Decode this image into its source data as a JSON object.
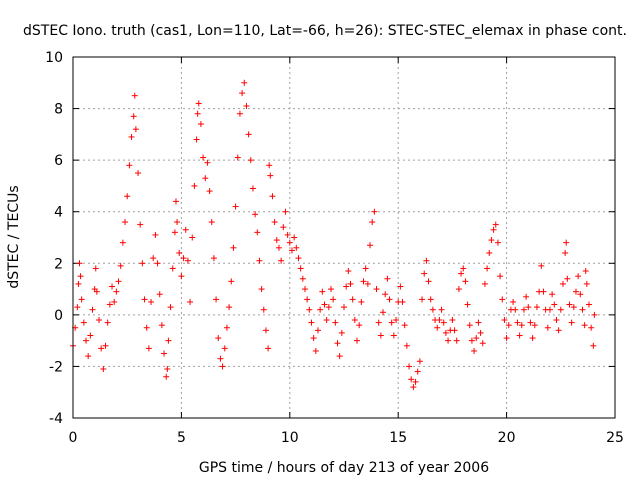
{
  "chart_data": {
    "type": "scatter",
    "title": "dSTEC Iono. truth (cas1, Lon=110, Lat=-66, h=26): STEC-STEC_elemax in phase cont.",
    "xlabel": "GPS time / hours of day 213 of year 2006",
    "ylabel": "dSTEC  / TECUs",
    "xlim": [
      0,
      25
    ],
    "ylim": [
      -4,
      10
    ],
    "xticks": [
      0,
      5,
      10,
      15,
      20,
      25
    ],
    "yticks": [
      -4,
      -2,
      0,
      2,
      4,
      6,
      8,
      10
    ],
    "grid": true,
    "marker": "+",
    "colors": {
      "series": "#ff0000",
      "grid": "#a0a0a0",
      "axis": "#000000"
    },
    "series": [
      {
        "name": "",
        "points": [
          [
            0.0,
            -1.2
          ],
          [
            0.1,
            -0.5
          ],
          [
            0.2,
            0.3
          ],
          [
            0.25,
            1.2
          ],
          [
            0.3,
            2.0
          ],
          [
            0.35,
            1.5
          ],
          [
            0.4,
            0.6
          ],
          [
            0.5,
            -0.3
          ],
          [
            0.6,
            -1.0
          ],
          [
            0.7,
            -1.6
          ],
          [
            0.8,
            -0.8
          ],
          [
            0.9,
            0.2
          ],
          [
            1.0,
            1.0
          ],
          [
            1.05,
            1.8
          ],
          [
            1.1,
            0.9
          ],
          [
            1.2,
            -0.2
          ],
          [
            1.3,
            -1.3
          ],
          [
            1.4,
            -2.1
          ],
          [
            1.5,
            -1.2
          ],
          [
            1.6,
            -0.3
          ],
          [
            1.7,
            0.4
          ],
          [
            1.8,
            1.1
          ],
          [
            1.9,
            0.5
          ],
          [
            2.0,
            0.9
          ],
          [
            2.1,
            1.3
          ],
          [
            2.2,
            1.9
          ],
          [
            2.3,
            2.8
          ],
          [
            2.4,
            3.6
          ],
          [
            2.5,
            4.6
          ],
          [
            2.6,
            5.8
          ],
          [
            2.7,
            6.9
          ],
          [
            2.8,
            7.7
          ],
          [
            2.85,
            8.5
          ],
          [
            2.9,
            7.2
          ],
          [
            3.0,
            5.5
          ],
          [
            3.1,
            3.5
          ],
          [
            3.2,
            2.0
          ],
          [
            3.3,
            0.6
          ],
          [
            3.4,
            -0.5
          ],
          [
            3.5,
            -1.3
          ],
          [
            3.6,
            0.5
          ],
          [
            3.7,
            2.2
          ],
          [
            3.8,
            3.1
          ],
          [
            3.9,
            2.0
          ],
          [
            4.0,
            0.8
          ],
          [
            4.1,
            -0.4
          ],
          [
            4.2,
            -1.5
          ],
          [
            4.3,
            -2.4
          ],
          [
            4.35,
            -2.1
          ],
          [
            4.4,
            -1.0
          ],
          [
            4.5,
            0.3
          ],
          [
            4.6,
            1.8
          ],
          [
            4.7,
            3.2
          ],
          [
            4.75,
            4.4
          ],
          [
            4.8,
            3.6
          ],
          [
            4.9,
            2.4
          ],
          [
            5.0,
            1.5
          ],
          [
            5.1,
            2.2
          ],
          [
            5.2,
            3.3
          ],
          [
            5.3,
            2.1
          ],
          [
            5.4,
            0.5
          ],
          [
            5.5,
            3.0
          ],
          [
            5.6,
            5.0
          ],
          [
            5.7,
            6.8
          ],
          [
            5.75,
            7.8
          ],
          [
            5.8,
            8.2
          ],
          [
            5.9,
            7.4
          ],
          [
            6.0,
            6.1
          ],
          [
            6.1,
            5.3
          ],
          [
            6.2,
            5.9
          ],
          [
            6.3,
            4.8
          ],
          [
            6.4,
            3.6
          ],
          [
            6.5,
            2.2
          ],
          [
            6.6,
            0.6
          ],
          [
            6.7,
            -0.9
          ],
          [
            6.8,
            -1.7
          ],
          [
            6.9,
            -2.0
          ],
          [
            7.0,
            -1.3
          ],
          [
            7.1,
            -0.5
          ],
          [
            7.2,
            0.3
          ],
          [
            7.3,
            1.3
          ],
          [
            7.4,
            2.6
          ],
          [
            7.5,
            4.2
          ],
          [
            7.6,
            6.1
          ],
          [
            7.7,
            7.8
          ],
          [
            7.8,
            8.6
          ],
          [
            7.9,
            9.0
          ],
          [
            8.0,
            8.1
          ],
          [
            8.1,
            7.0
          ],
          [
            8.2,
            6.0
          ],
          [
            8.3,
            4.9
          ],
          [
            8.4,
            3.9
          ],
          [
            8.5,
            3.2
          ],
          [
            8.6,
            2.1
          ],
          [
            8.7,
            1.0
          ],
          [
            8.8,
            0.2
          ],
          [
            8.9,
            -0.6
          ],
          [
            9.0,
            -1.3
          ],
          [
            9.05,
            5.8
          ],
          [
            9.1,
            5.4
          ],
          [
            9.2,
            4.6
          ],
          [
            9.3,
            3.6
          ],
          [
            9.4,
            2.9
          ],
          [
            9.5,
            2.6
          ],
          [
            9.6,
            2.1
          ],
          [
            9.7,
            3.4
          ],
          [
            9.8,
            4.0
          ],
          [
            9.9,
            3.1
          ],
          [
            10.0,
            2.8
          ],
          [
            10.1,
            2.5
          ],
          [
            10.2,
            3.0
          ],
          [
            10.3,
            2.6
          ],
          [
            10.4,
            2.2
          ],
          [
            10.5,
            1.8
          ],
          [
            10.6,
            1.4
          ],
          [
            10.7,
            1.0
          ],
          [
            10.8,
            0.6
          ],
          [
            10.9,
            0.2
          ],
          [
            11.0,
            -0.3
          ],
          [
            11.1,
            -0.9
          ],
          [
            11.2,
            -1.4
          ],
          [
            11.3,
            -0.6
          ],
          [
            11.4,
            0.2
          ],
          [
            11.5,
            0.9
          ],
          [
            11.6,
            0.4
          ],
          [
            11.7,
            -0.2
          ],
          [
            11.8,
            0.3
          ],
          [
            11.9,
            1.0
          ],
          [
            12.0,
            0.6
          ],
          [
            12.1,
            -0.3
          ],
          [
            12.2,
            -1.1
          ],
          [
            12.3,
            -1.6
          ],
          [
            12.4,
            -0.7
          ],
          [
            12.5,
            0.3
          ],
          [
            12.6,
            1.1
          ],
          [
            12.7,
            1.7
          ],
          [
            12.8,
            1.2
          ],
          [
            12.9,
            0.6
          ],
          [
            13.0,
            -0.2
          ],
          [
            13.1,
            -1.0
          ],
          [
            13.2,
            -0.4
          ],
          [
            13.3,
            0.5
          ],
          [
            13.4,
            1.3
          ],
          [
            13.5,
            1.8
          ],
          [
            13.6,
            1.2
          ],
          [
            13.7,
            2.7
          ],
          [
            13.8,
            3.6
          ],
          [
            13.9,
            4.0
          ],
          [
            14.0,
            1.0
          ],
          [
            14.1,
            -0.3
          ],
          [
            14.2,
            -0.8
          ],
          [
            14.3,
            0.1
          ],
          [
            14.4,
            0.8
          ],
          [
            14.5,
            1.4
          ],
          [
            14.6,
            0.6
          ],
          [
            14.7,
            -0.3
          ],
          [
            14.8,
            -0.8
          ],
          [
            14.9,
            -0.2
          ],
          [
            15.0,
            0.5
          ],
          [
            15.1,
            1.1
          ],
          [
            15.2,
            0.5
          ],
          [
            15.3,
            -0.4
          ],
          [
            15.4,
            -1.2
          ],
          [
            15.5,
            -2.0
          ],
          [
            15.6,
            -2.5
          ],
          [
            15.7,
            -2.8
          ],
          [
            15.8,
            -2.6
          ],
          [
            15.9,
            -2.2
          ],
          [
            16.0,
            -1.8
          ],
          [
            16.1,
            0.6
          ],
          [
            16.2,
            1.6
          ],
          [
            16.3,
            2.1
          ],
          [
            16.4,
            1.3
          ],
          [
            16.5,
            0.6
          ],
          [
            16.6,
            0.2
          ],
          [
            16.7,
            -0.2
          ],
          [
            16.8,
            -0.5
          ],
          [
            16.9,
            -0.2
          ],
          [
            17.0,
            0.2
          ],
          [
            17.1,
            -0.3
          ],
          [
            17.2,
            -0.7
          ],
          [
            17.3,
            -1.0
          ],
          [
            17.4,
            -0.6
          ],
          [
            17.5,
            -0.2
          ],
          [
            17.6,
            -0.6
          ],
          [
            17.7,
            -1.0
          ],
          [
            17.8,
            1.0
          ],
          [
            17.9,
            1.6
          ],
          [
            18.0,
            1.8
          ],
          [
            18.1,
            1.3
          ],
          [
            18.2,
            0.4
          ],
          [
            18.3,
            -0.4
          ],
          [
            18.4,
            -1.0
          ],
          [
            18.5,
            -1.4
          ],
          [
            18.6,
            -0.9
          ],
          [
            18.7,
            -0.3
          ],
          [
            18.8,
            -0.7
          ],
          [
            18.9,
            -1.1
          ],
          [
            19.0,
            1.2
          ],
          [
            19.1,
            1.8
          ],
          [
            19.2,
            2.4
          ],
          [
            19.3,
            2.9
          ],
          [
            19.4,
            3.3
          ],
          [
            19.5,
            3.5
          ],
          [
            19.6,
            2.8
          ],
          [
            19.7,
            1.5
          ],
          [
            19.8,
            0.6
          ],
          [
            19.9,
            -0.2
          ],
          [
            20.0,
            -0.9
          ],
          [
            20.1,
            -0.4
          ],
          [
            20.2,
            0.2
          ],
          [
            20.3,
            0.5
          ],
          [
            20.4,
            0.2
          ],
          [
            20.5,
            -0.3
          ],
          [
            20.6,
            -0.8
          ],
          [
            20.7,
            -0.4
          ],
          [
            20.8,
            0.2
          ],
          [
            20.9,
            0.7
          ],
          [
            21.0,
            0.3
          ],
          [
            21.1,
            -0.3
          ],
          [
            21.2,
            -0.9
          ],
          [
            21.3,
            -0.4
          ],
          [
            21.4,
            0.3
          ],
          [
            21.5,
            0.9
          ],
          [
            21.6,
            1.9
          ],
          [
            21.7,
            0.9
          ],
          [
            21.8,
            0.2
          ],
          [
            21.9,
            -0.5
          ],
          [
            22.0,
            0.2
          ],
          [
            22.1,
            0.8
          ],
          [
            22.2,
            0.4
          ],
          [
            22.3,
            -0.2
          ],
          [
            22.4,
            -0.6
          ],
          [
            22.5,
            0.2
          ],
          [
            22.6,
            1.2
          ],
          [
            22.7,
            2.4
          ],
          [
            22.75,
            2.8
          ],
          [
            22.8,
            1.4
          ],
          [
            22.9,
            0.4
          ],
          [
            23.0,
            -0.3
          ],
          [
            23.1,
            0.3
          ],
          [
            23.2,
            0.9
          ],
          [
            23.3,
            1.5
          ],
          [
            23.4,
            0.8
          ],
          [
            23.5,
            0.2
          ],
          [
            23.6,
            -0.4
          ],
          [
            23.65,
            1.7
          ],
          [
            23.7,
            1.2
          ],
          [
            23.8,
            0.4
          ],
          [
            23.9,
            -0.5
          ],
          [
            24.0,
            -1.2
          ],
          [
            24.05,
            0.0
          ]
        ]
      }
    ]
  }
}
